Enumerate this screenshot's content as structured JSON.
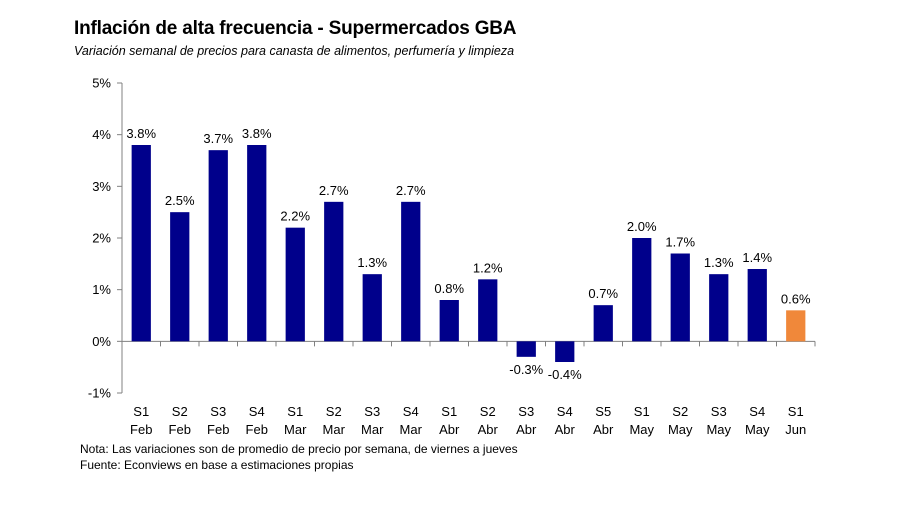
{
  "header": {
    "title": "Inflación de alta frecuencia - Supermercados GBA",
    "subtitle": "Variación semanal de precios para canasta de alimentos, perfumería y limpieza"
  },
  "footer": {
    "note": "Nota: Las variaciones son de promedio de precio por semana, de viernes a jueves",
    "source": "Fuente: Econviews en base a estimaciones propias"
  },
  "colors": {
    "bar": "#00008B",
    "highlight": "#F0883A",
    "axis": "#808080"
  },
  "chart_data": {
    "type": "bar",
    "title": "Inflación de alta frecuencia - Supermercados GBA",
    "subtitle": "Variación semanal de precios para canasta de alimentos, perfumería y limpieza",
    "xlabel": "",
    "ylabel": "",
    "ylim": [
      -1,
      5
    ],
    "yticks": [
      -1,
      0,
      1,
      2,
      3,
      4,
      5
    ],
    "ytick_labels": [
      "-1%",
      "0%",
      "1%",
      "2%",
      "3%",
      "4%",
      "5%"
    ],
    "grid": false,
    "categories": [
      [
        "S1",
        "Feb"
      ],
      [
        "S2",
        "Feb"
      ],
      [
        "S3",
        "Feb"
      ],
      [
        "S4",
        "Feb"
      ],
      [
        "S1",
        "Mar"
      ],
      [
        "S2",
        "Mar"
      ],
      [
        "S3",
        "Mar"
      ],
      [
        "S4",
        "Mar"
      ],
      [
        "S1",
        "Abr"
      ],
      [
        "S2",
        "Abr"
      ],
      [
        "S3",
        "Abr"
      ],
      [
        "S4",
        "Abr"
      ],
      [
        "S5",
        "Abr"
      ],
      [
        "S1",
        "May"
      ],
      [
        "S2",
        "May"
      ],
      [
        "S3",
        "May"
      ],
      [
        "S4",
        "May"
      ],
      [
        "S1",
        "Jun"
      ]
    ],
    "values": [
      3.8,
      2.5,
      3.7,
      3.8,
      2.2,
      2.7,
      1.3,
      2.7,
      0.8,
      1.2,
      -0.3,
      -0.4,
      0.7,
      2.0,
      1.7,
      1.3,
      1.4,
      0.6
    ],
    "data_labels": [
      "3.8%",
      "2.5%",
      "3.7%",
      "3.8%",
      "2.2%",
      "2.7%",
      "1.3%",
      "2.7%",
      "0.8%",
      "1.2%",
      "-0.3%",
      "-0.4%",
      "0.7%",
      "2.0%",
      "1.7%",
      "1.3%",
      "1.4%",
      "0.6%"
    ],
    "highlight_index": 17
  }
}
